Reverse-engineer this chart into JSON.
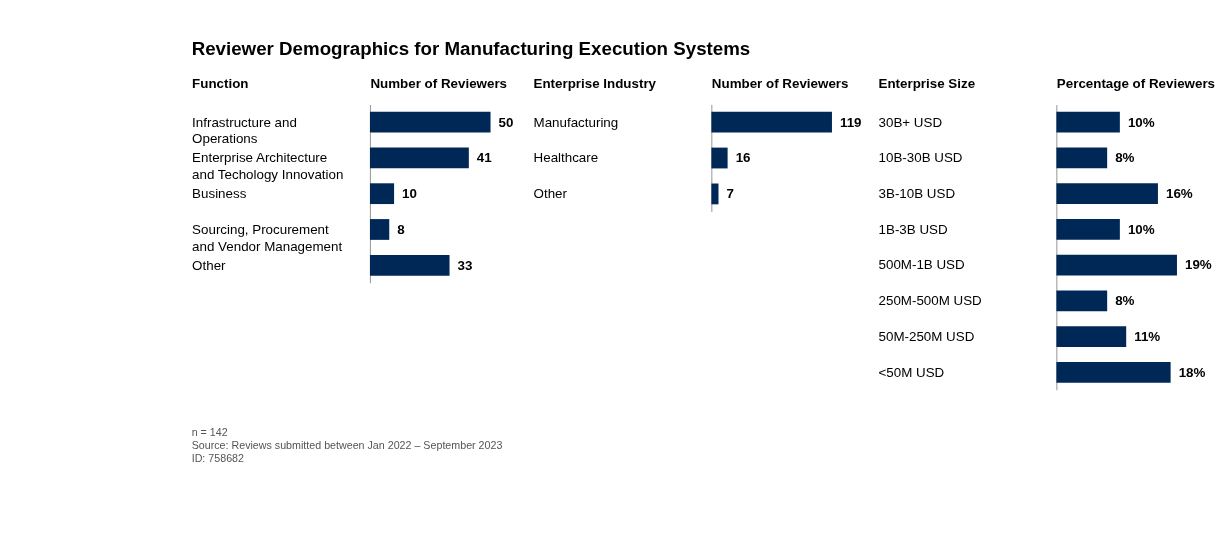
{
  "chart_data": [
    {
      "type": "bar",
      "orientation": "horizontal",
      "title": "Reviewer Demographics for Manufacturing Execution Systems",
      "ylabel": "Function",
      "xlabel": "Number of Reviewers",
      "categories": [
        "Infrastructure and Operations",
        "Enterprise Architecture and Techology Innovation",
        "Business",
        "Sourcing, Procurement and Vendor Management",
        "Other"
      ],
      "values": [
        50,
        41,
        10,
        8,
        33
      ],
      "color": "#002856",
      "data_labels": true,
      "annotations": [
        "n = 142",
        "Source: Reviews submitted between Jan 2022 – September 2023",
        "ID: 758682"
      ]
    },
    {
      "type": "bar",
      "orientation": "horizontal",
      "ylabel": "Enterprise Industry",
      "xlabel": "Number of Reviewers",
      "categories": [
        "Manufacturing",
        "Healthcare",
        "Other"
      ],
      "values": [
        119,
        16,
        7
      ],
      "color": "#002856",
      "data_labels": true
    },
    {
      "type": "bar",
      "orientation": "horizontal",
      "ylabel": "Enterprise Size",
      "xlabel": "Percentage of Reviewers",
      "categories": [
        "30B+ USD",
        "10B-30B USD",
        "3B-10B USD",
        "1B-3B USD",
        "500M-1B USD",
        "250M-500M USD",
        "50M-250M USD",
        "<50M USD"
      ],
      "values": [
        10,
        8,
        16,
        10,
        19,
        8,
        11,
        18
      ],
      "value_labels": [
        "10%",
        "8%",
        "16%",
        "10%",
        "19%",
        "8%",
        "11%",
        "18%"
      ],
      "color": "#002856"
    }
  ]
}
